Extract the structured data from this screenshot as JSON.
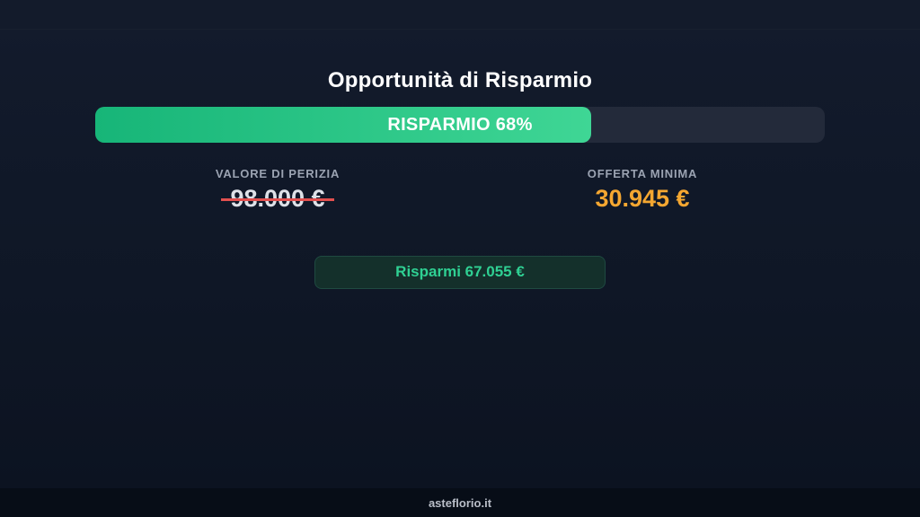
{
  "header": {
    "title": "Opportunità di Risparmio"
  },
  "progress": {
    "label": "RISPARMIO 68%",
    "percent": 68
  },
  "stats": {
    "appraisal": {
      "label": "VALORE DI PERIZIA",
      "value": "98.000 €"
    },
    "minimum_offer": {
      "label": "OFFERTA MINIMA",
      "value": "30.945 €"
    }
  },
  "savings_badge": {
    "label": "Risparmi 67.055 €"
  },
  "footer": {
    "site": "asteflorio.it"
  },
  "colors": {
    "accent-green-start": "#17b578",
    "accent-green-end": "#3fd695",
    "track": "#232a3a",
    "orange": "#f5a731",
    "strike-red": "#e2504f",
    "badge-bg": "#14302b",
    "badge-border": "#1f4a41",
    "badge-text": "#2fd093"
  }
}
